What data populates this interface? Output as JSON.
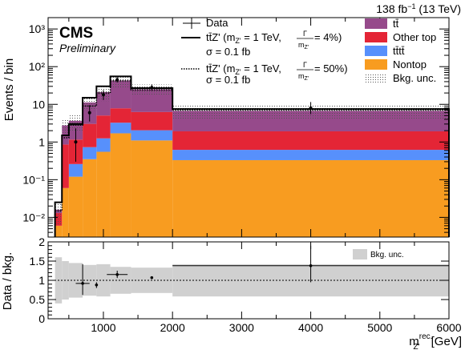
{
  "header": {
    "experiment": "CMS",
    "status": "Preliminary",
    "lumi_value": "138 fb",
    "lumi_exp": "−1",
    "lumi_energy": " (13 TeV)"
  },
  "axes": {
    "y_main_label": "Events / bin",
    "y_ratio_label": "Data / bkg.",
    "x_label_main": "m",
    "x_label_sub": "Z'",
    "x_label_sup": "rec.",
    "x_label_unit": " [GeV]"
  },
  "legend": {
    "data": "Data",
    "signal1_line1": "tt̄Z' (m",
    "signal1_sub": "Z'",
    "signal1_eq": " = 1 TeV,",
    "signal1_frac_num": "Γ",
    "signal1_frac_den": "m",
    "signal1_frac_den_sub": "Z'",
    "signal1_tail": " = 4%)",
    "signal1_line2": "σ = 0.1 fb",
    "signal2_line1": "tt̄Z' (m",
    "signal2_sub": "Z'",
    "signal2_eq": " = 1 TeV,",
    "signal2_frac_num": "Γ",
    "signal2_frac_den": "m",
    "signal2_frac_den_sub": "Z'",
    "signal2_tail": " = 50%)",
    "signal2_line2": "σ = 0.1 fb",
    "ttbar": "tt̄",
    "other_top": "Other top",
    "tttt": "tt̄tt̄",
    "nontop": "Nontop",
    "bkg_unc": "Bkg. unc.",
    "ratio_unc": "Bkg. unc."
  },
  "colors": {
    "ttbar": "#964a8b",
    "other_top": "#e42536",
    "tttt": "#5790fc",
    "nontop": "#f89c20",
    "ratio_band": "#d0d0d0"
  },
  "chart_data": {
    "type": "bar",
    "stacked": true,
    "log_y": true,
    "x_edges": [
      300,
      400,
      500,
      700,
      900,
      1100,
      1400,
      2000,
      6000
    ],
    "xlim": [
      200,
      6000
    ],
    "ylim": [
      0.003,
      2000
    ],
    "y_ticks": [
      0.01,
      0.1,
      1,
      10,
      100,
      1000
    ],
    "y_tick_labels": [
      "10⁻²",
      "10⁻¹",
      "1",
      "10",
      "10²",
      "10³"
    ],
    "x_ticks": [
      1000,
      2000,
      3000,
      4000,
      5000,
      6000
    ],
    "x_tick_labels": [
      "1000",
      "2000",
      "3000",
      "4000",
      "5000",
      "6000"
    ],
    "series": [
      {
        "name": "Nontop",
        "values": [
          0.006,
          0.06,
          0.12,
          0.35,
          0.55,
          1.7,
          1.1,
          0.33
        ]
      },
      {
        "name": "tt̄tt̄",
        "values": [
          0,
          0,
          0.14,
          0.38,
          0.7,
          1.55,
          0.95,
          0.29
        ]
      },
      {
        "name": "Other top",
        "values": [
          0.007,
          0.8,
          0.9,
          2.3,
          3.8,
          4.6,
          4.2,
          1.3
        ]
      },
      {
        "name": "tt̄",
        "values": [
          0.003,
          1.9,
          2.5,
          8.2,
          16,
          35,
          19,
          4.8
        ]
      }
    ],
    "bkg_unc_rel": [
      0.6,
      0.5,
      0.45,
      0.4,
      0.42,
      0.35,
      0.33,
      0.42
    ],
    "signal_4pct": [
      0.025,
      1.5,
      3.0,
      15,
      30,
      55,
      27,
      7.5
    ],
    "signal_50pct": [
      0.015,
      1.3,
      2.8,
      9,
      20,
      42,
      24,
      7.1
    ],
    "data": {
      "x": [
        600,
        800,
        1000,
        1200,
        1700,
        4000
      ],
      "y": [
        1.0,
        6.0,
        18,
        45,
        28,
        8.0
      ],
      "ylo": [
        0.3,
        3.5,
        13,
        38,
        23,
        5.5
      ],
      "yhi": [
        2.3,
        9.5,
        24,
        53,
        34,
        11.5
      ]
    },
    "ratio": {
      "ylim": [
        0,
        2
      ],
      "y_ticks": [
        0,
        0.5,
        1,
        1.5,
        2
      ],
      "y_tick_labels": [
        "0",
        "0.5",
        "1",
        "1.5",
        "2"
      ],
      "x": [
        700,
        900,
        1200,
        1700,
        4000
      ],
      "xerr_lo": [
        600,
        880,
        1050,
        1690,
        2000
      ],
      "xerr_hi": [
        800,
        920,
        1350,
        1710,
        6000
      ],
      "y": [
        0.92,
        0.88,
        1.15,
        1.07,
        1.38
      ],
      "ylo": [
        0.62,
        0.8,
        1.06,
        1.06,
        0.95
      ],
      "yhi": [
        1.42,
        0.95,
        1.25,
        1.09,
        1.9
      ]
    }
  }
}
